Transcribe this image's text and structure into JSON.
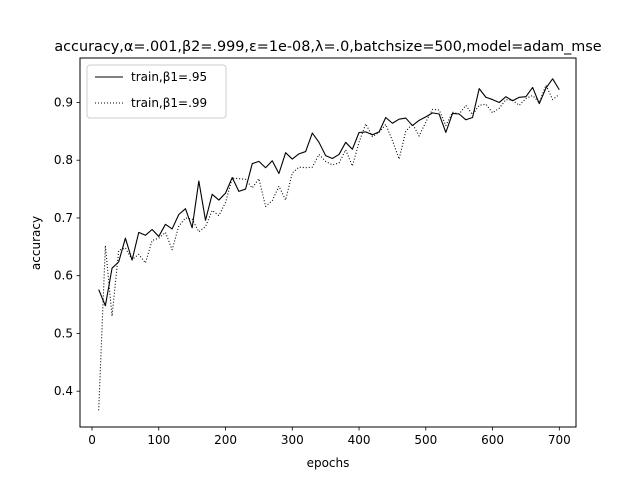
{
  "chart_data": {
    "type": "line",
    "title": "accuracy,α=.001,β2=.999,ε=1e-08,λ=.0,batchsize=500,model=adam_mse",
    "xlabel": "epochs",
    "ylabel": "accuracy",
    "xlim": [
      -18,
      725
    ],
    "ylim": [
      0.338,
      0.977
    ],
    "xticks": [
      0,
      100,
      200,
      300,
      400,
      500,
      600,
      700
    ],
    "yticks": [
      0.4,
      0.5,
      0.6,
      0.7,
      0.8,
      0.9
    ],
    "ytick_labels": [
      "0.4",
      "0.5",
      "0.6",
      "0.7",
      "0.8",
      "0.9"
    ],
    "legend_position": "upper-left",
    "grid": false,
    "x": [
      10,
      20,
      30,
      40,
      50,
      60,
      70,
      80,
      90,
      100,
      110,
      120,
      130,
      140,
      150,
      160,
      170,
      180,
      190,
      200,
      210,
      220,
      230,
      240,
      250,
      260,
      270,
      280,
      290,
      300,
      310,
      320,
      330,
      340,
      350,
      360,
      370,
      380,
      390,
      400,
      410,
      420,
      430,
      440,
      450,
      460,
      470,
      480,
      490,
      500,
      510,
      520,
      530,
      540,
      550,
      560,
      570,
      580,
      590,
      600,
      610,
      620,
      630,
      640,
      650,
      660,
      670,
      680,
      690,
      700
    ],
    "series": [
      {
        "name": "train,β1=.95",
        "style": "solid",
        "color": "#000000",
        "values": [
          0.576,
          0.548,
          0.613,
          0.624,
          0.665,
          0.627,
          0.675,
          0.67,
          0.68,
          0.668,
          0.689,
          0.681,
          0.706,
          0.716,
          0.683,
          0.764,
          0.696,
          0.741,
          0.731,
          0.743,
          0.77,
          0.746,
          0.75,
          0.794,
          0.798,
          0.787,
          0.799,
          0.777,
          0.813,
          0.802,
          0.811,
          0.815,
          0.847,
          0.831,
          0.808,
          0.803,
          0.81,
          0.831,
          0.819,
          0.848,
          0.849,
          0.844,
          0.849,
          0.874,
          0.864,
          0.871,
          0.873,
          0.86,
          0.869,
          0.875,
          0.882,
          0.88,
          0.848,
          0.881,
          0.88,
          0.87,
          0.874,
          0.924,
          0.909,
          0.905,
          0.9,
          0.91,
          0.903,
          0.909,
          0.91,
          0.926,
          0.898,
          0.925,
          0.941,
          0.922
        ]
      },
      {
        "name": "train,β1=.99",
        "style": "dotted",
        "color": "#000000",
        "values": [
          0.367,
          0.652,
          0.53,
          0.644,
          0.648,
          0.628,
          0.637,
          0.622,
          0.661,
          0.665,
          0.675,
          0.645,
          0.686,
          0.7,
          0.698,
          0.676,
          0.685,
          0.713,
          0.704,
          0.727,
          0.769,
          0.768,
          0.767,
          0.752,
          0.768,
          0.72,
          0.73,
          0.755,
          0.731,
          0.778,
          0.788,
          0.787,
          0.788,
          0.81,
          0.798,
          0.792,
          0.795,
          0.818,
          0.79,
          0.831,
          0.863,
          0.841,
          0.848,
          0.862,
          0.834,
          0.802,
          0.85,
          0.863,
          0.842,
          0.866,
          0.888,
          0.887,
          0.86,
          0.883,
          0.88,
          0.895,
          0.879,
          0.895,
          0.897,
          0.882,
          0.89,
          0.905,
          0.904,
          0.895,
          0.907,
          0.912,
          0.9,
          0.93,
          0.905,
          0.914
        ]
      }
    ]
  }
}
